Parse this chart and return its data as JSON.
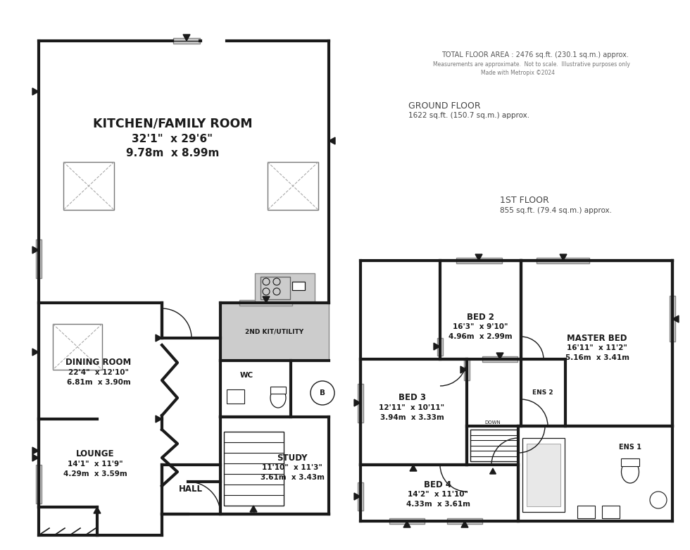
{
  "bg": "#ffffff",
  "wc": "#1a1a1a",
  "gc": "#cccccc",
  "wlw": 3.0,
  "tlw": 1.0,
  "info_title": "TOTAL FLOOR AREA : 2476 sq.ft. (230.1 sq.m.) approx.",
  "info_sub1": "Measurements are approximate.  Not to scale.  Illustrative purposes only",
  "info_sub2": "Made with Metropix ©2024",
  "gf_label1": "GROUND FLOOR",
  "gf_label2": "1622 sq.ft. (150.7 sq.m.) approx.",
  "ff_label1": "1ST FLOOR",
  "ff_label2": "855 sq.ft. (79.4 sq.m.) approx."
}
